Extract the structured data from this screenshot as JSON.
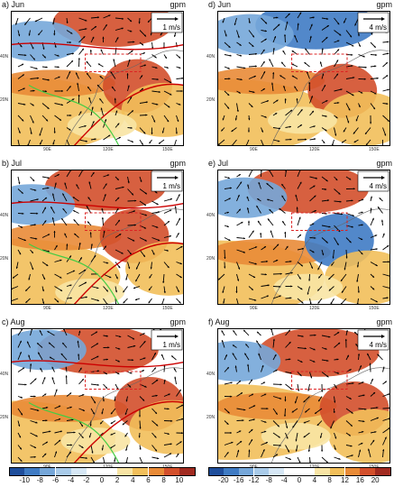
{
  "panels": [
    {
      "label": "a) Jun",
      "unit": "gpm",
      "scale": "1 m/s",
      "lat": [
        "40N",
        "20N"
      ],
      "lon": [
        "90E",
        "120E",
        "150E"
      ],
      "sign": 1,
      "seed": 1
    },
    {
      "label": "d) Jun",
      "unit": "gpm",
      "scale": "4 m/s",
      "lat": [
        "40N",
        "20N"
      ],
      "lon": [
        "90E",
        "120E",
        "150E"
      ],
      "sign": -1,
      "seed": 2
    },
    {
      "label": "b) Jul",
      "unit": "gpm",
      "scale": "1 m/s",
      "lat": [
        "40N",
        "20N"
      ],
      "lon": [
        "90E",
        "120E",
        "150E"
      ],
      "sign": 1,
      "seed": 3
    },
    {
      "label": "e) Jul",
      "unit": "gpm",
      "scale": "4 m/s",
      "lat": [
        "40N",
        "20N"
      ],
      "lon": [
        "90E",
        "120E",
        "150E"
      ],
      "sign": 1,
      "seed": 4
    },
    {
      "label": "c) Aug",
      "unit": "gpm",
      "scale": "1 m/s",
      "lat": [
        "40N",
        "20N"
      ],
      "lon": [
        "90E",
        "120E",
        "150E"
      ],
      "sign": 1,
      "seed": 5
    },
    {
      "label": "f) Aug",
      "unit": "gpm",
      "scale": "4 m/s",
      "lat": [
        "40N",
        "20N"
      ],
      "lon": [
        "90E",
        "120E",
        "150E"
      ],
      "sign": 1,
      "seed": 6
    }
  ],
  "colorbar_left": {
    "ticks": [
      "-10",
      "-8",
      "-6",
      "-4",
      "-2",
      "0",
      "2",
      "4",
      "6",
      "8",
      "10"
    ],
    "colors": [
      "#1f4e9c",
      "#3f7bc4",
      "#76a7d9",
      "#a9cbe9",
      "#d6e7f5",
      "#ffffff",
      "#ffffff",
      "#f8e4a4",
      "#f2bf5a",
      "#e98b37",
      "#d34f2b",
      "#a12a20"
    ]
  },
  "colorbar_right": {
    "ticks": [
      "-20",
      "-16",
      "-12",
      "-8",
      "-4",
      "0",
      "4",
      "8",
      "12",
      "16",
      "20"
    ],
    "colors": [
      "#1f4e9c",
      "#3f7bc4",
      "#76a7d9",
      "#a9cbe9",
      "#d6e7f5",
      "#ffffff",
      "#ffffff",
      "#f8e4a4",
      "#f2bf5a",
      "#e98b37",
      "#d34f2b",
      "#a12a20"
    ]
  }
}
